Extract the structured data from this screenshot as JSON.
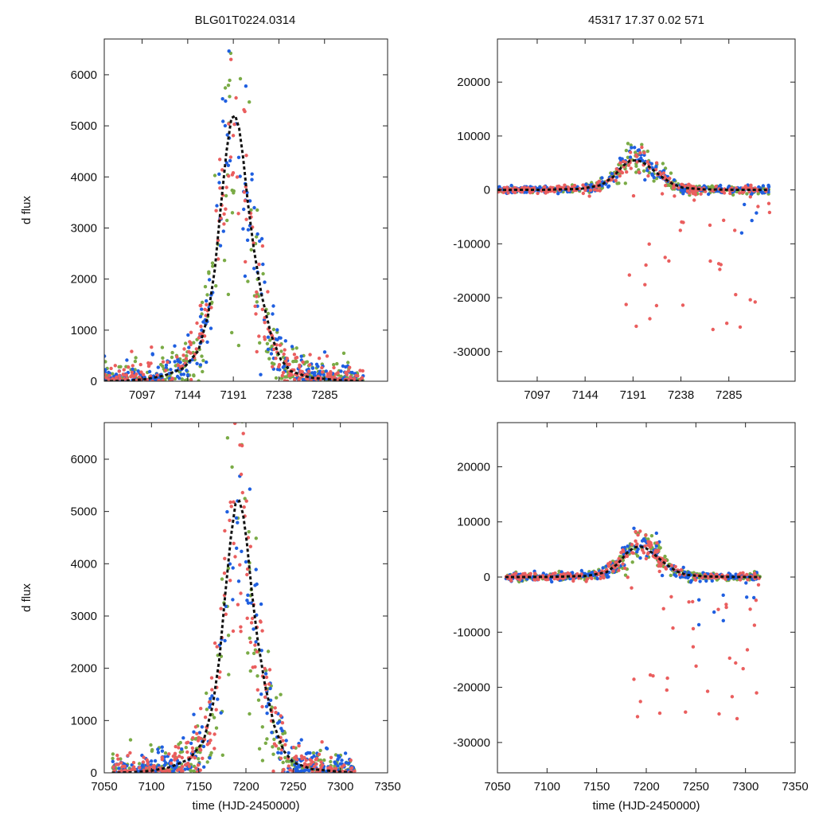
{
  "header": {
    "left_title": "BLG01T0224.0314",
    "right_title": "45317  17.37  0.02  571"
  },
  "colors": {
    "green": "#7aab46",
    "blue": "#1f5fe0",
    "red": "#ea5e5e",
    "model": "#111111",
    "frame": "#222222"
  },
  "chart_data": [
    {
      "id": "panel-top-left",
      "type": "scatter",
      "title": "BLG01T0224.0314",
      "xlabel": "",
      "ylabel": "d flux",
      "xlim": [
        7058,
        7350
      ],
      "ylim": [
        0,
        6700
      ],
      "xticks": [
        7097,
        7144,
        7191,
        7238,
        7285
      ],
      "yticks": [
        0,
        1000,
        2000,
        3000,
        4000,
        5000,
        6000
      ],
      "model": {
        "name": "model",
        "x": [
          7058,
          7080,
          7100,
          7120,
          7140,
          7155,
          7165,
          7172,
          7178,
          7184,
          7189,
          7193,
          7197,
          7201,
          7206,
          7212,
          7220,
          7230,
          7240,
          7250,
          7270,
          7300,
          7325
        ],
        "y": [
          0,
          10,
          40,
          110,
          260,
          600,
          1300,
          2200,
          3400,
          4500,
          5150,
          5200,
          4950,
          4400,
          3500,
          2600,
          1700,
          900,
          420,
          200,
          70,
          20,
          0
        ]
      },
      "series": [
        {
          "name": "green",
          "color": "green",
          "spread": 0.3
        },
        {
          "name": "blue",
          "color": "blue",
          "spread": 0.22
        },
        {
          "name": "red",
          "color": "red",
          "spread": 0.18
        }
      ]
    },
    {
      "id": "panel-top-right",
      "type": "scatter",
      "title": "45317  17.37  0.02  571",
      "xlabel": "",
      "ylabel": "",
      "xlim": [
        7058,
        7350
      ],
      "ylim": [
        -35500,
        28000
      ],
      "xticks": [
        7097,
        7144,
        7191,
        7238,
        7285
      ],
      "yticks": [
        -30000,
        -20000,
        -10000,
        0,
        10000,
        20000
      ],
      "model": {
        "name": "model",
        "x": [
          7058,
          7100,
          7140,
          7160,
          7172,
          7180,
          7188,
          7195,
          7200,
          7206,
          7212,
          7220,
          7230,
          7240,
          7260,
          7290,
          7325
        ],
        "y": [
          0,
          20,
          200,
          900,
          2500,
          4300,
          5400,
          5500,
          5200,
          4400,
          3500,
          2300,
          1100,
          400,
          100,
          20,
          0
        ]
      },
      "series": [
        {
          "name": "green",
          "color": "green",
          "spread": 0.3
        },
        {
          "name": "blue",
          "color": "blue",
          "spread": 0.22
        },
        {
          "name": "red",
          "color": "red",
          "spread": 0.18
        }
      ]
    },
    {
      "id": "panel-bottom-left",
      "type": "scatter",
      "title": "",
      "xlabel": "time (HJD-2450000)",
      "ylabel": "d flux",
      "xlim": [
        7050,
        7350
      ],
      "ylim": [
        0,
        6700
      ],
      "xticks": [
        7050,
        7100,
        7150,
        7200,
        7250,
        7300,
        7350
      ],
      "yticks": [
        0,
        1000,
        2000,
        3000,
        4000,
        5000,
        6000
      ],
      "model": {
        "name": "model",
        "x": [
          7058,
          7080,
          7100,
          7120,
          7140,
          7155,
          7165,
          7172,
          7178,
          7184,
          7189,
          7193,
          7197,
          7201,
          7206,
          7212,
          7220,
          7230,
          7240,
          7250,
          7270,
          7300,
          7315
        ],
        "y": [
          0,
          10,
          40,
          110,
          260,
          600,
          1300,
          2200,
          3400,
          4500,
          5150,
          5200,
          4950,
          4400,
          3500,
          2600,
          1700,
          900,
          420,
          200,
          70,
          20,
          0
        ]
      },
      "series": [
        {
          "name": "green",
          "color": "green",
          "spread": 0.3
        },
        {
          "name": "blue",
          "color": "blue",
          "spread": 0.22
        },
        {
          "name": "red",
          "color": "red",
          "spread": 0.18
        }
      ]
    },
    {
      "id": "panel-bottom-right",
      "type": "scatter",
      "title": "",
      "xlabel": "time (HJD-2450000)",
      "ylabel": "",
      "xlim": [
        7050,
        7350
      ],
      "ylim": [
        -35500,
        28000
      ],
      "xticks": [
        7050,
        7100,
        7150,
        7200,
        7250,
        7300,
        7350
      ],
      "yticks": [
        -30000,
        -20000,
        -10000,
        0,
        10000,
        20000
      ],
      "model": {
        "name": "model",
        "x": [
          7058,
          7100,
          7140,
          7160,
          7172,
          7180,
          7188,
          7195,
          7200,
          7206,
          7212,
          7220,
          7230,
          7240,
          7260,
          7290,
          7315
        ],
        "y": [
          0,
          20,
          200,
          900,
          2500,
          4300,
          5400,
          5500,
          5200,
          4400,
          3500,
          2300,
          1100,
          400,
          100,
          20,
          0
        ]
      },
      "series": [
        {
          "name": "green",
          "color": "green",
          "spread": 0.3
        },
        {
          "name": "blue",
          "color": "blue",
          "spread": 0.22
        },
        {
          "name": "red",
          "color": "red",
          "spread": 0.18
        }
      ]
    }
  ]
}
